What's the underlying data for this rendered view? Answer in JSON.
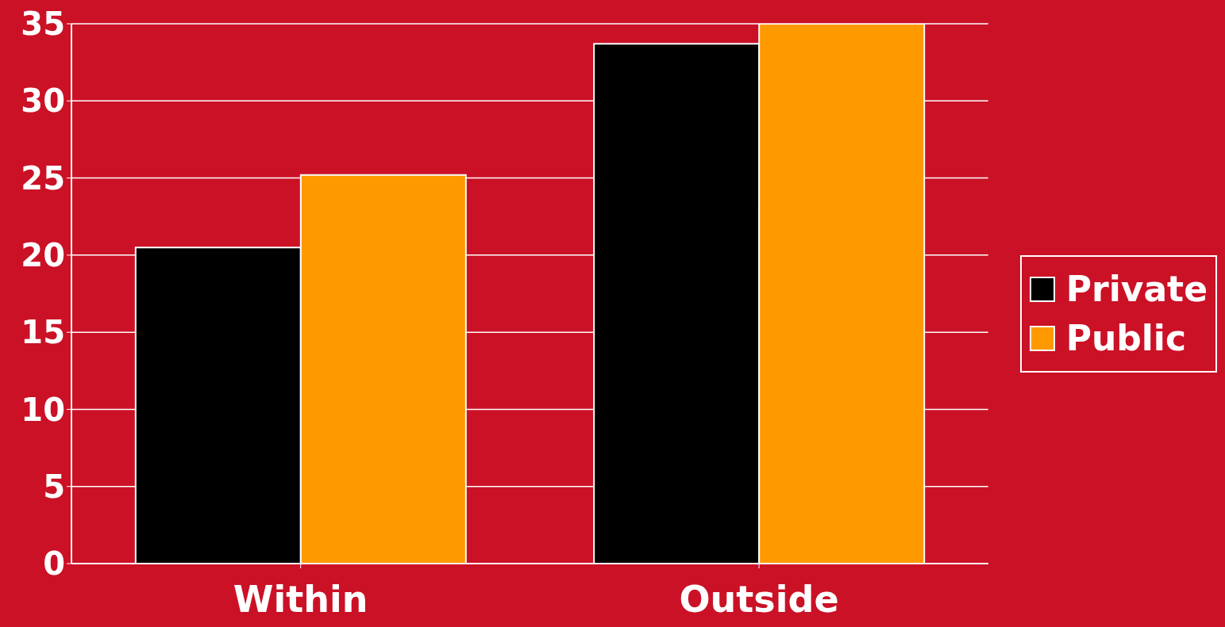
{
  "chart_data": {
    "type": "bar",
    "categories": [
      "Within",
      "Outside"
    ],
    "series": [
      {
        "name": "Private",
        "color": "#000000",
        "values": [
          20.5,
          33.7
        ]
      },
      {
        "name": "Public",
        "color": "#ff9900",
        "values": [
          25.2,
          35.0
        ]
      }
    ],
    "ylim": [
      0,
      35
    ],
    "yticks": [
      0,
      5,
      10,
      15,
      20,
      25,
      30,
      35
    ],
    "grid": "y",
    "legend": "right"
  }
}
